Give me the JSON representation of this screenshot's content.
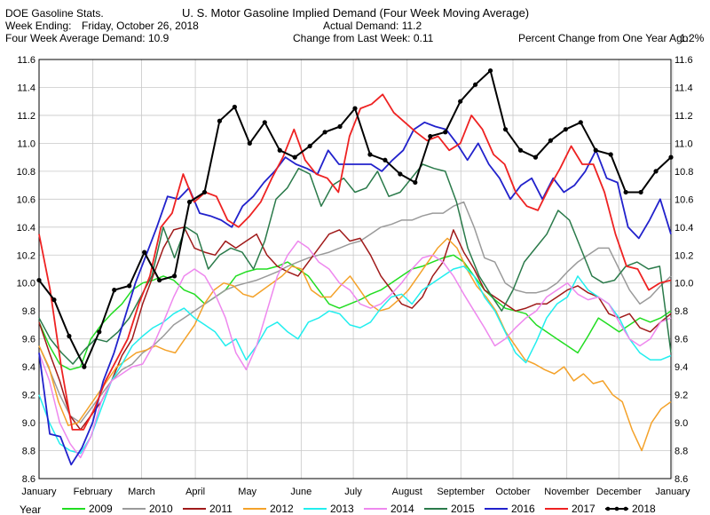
{
  "header": {
    "source": "DOE Gasoline Stats.",
    "title": "U. S. Motor Gasoline Implied Demand (Four Week Moving Average)",
    "week_ending_label": "Week Ending:",
    "week_ending_value": "Friday, October 26, 2018",
    "actual_demand": "Actual Demand: 11.2",
    "four_week_avg": "Four Week Average Demand: 10.9",
    "change_last_week": "Change from Last Week: 0.11",
    "pct_change_year": "Percent Change from One Year Ago:",
    "pct_change_value": "1.2%"
  },
  "legend_label": "Year",
  "chart_data": {
    "type": "line",
    "title": "U. S. Motor Gasoline Implied Demand (Four Week Moving Average)",
    "xlabel": "",
    "ylabel": "",
    "ylim": [
      8.6,
      11.6
    ],
    "yticks": [
      "8.6",
      "8.8",
      "9.0",
      "9.2",
      "9.4",
      "9.6",
      "9.8",
      "10.0",
      "10.2",
      "10.4",
      "10.6",
      "10.8",
      "11.0",
      "11.2",
      "11.4",
      "11.6"
    ],
    "xlim": [
      0,
      52
    ],
    "xtick_labels": [
      "January",
      "February",
      "March",
      "April",
      "May",
      "June",
      "July",
      "August",
      "September",
      "October",
      "November",
      "December",
      "January"
    ],
    "xtick_positions": [
      0,
      4.43,
      8.43,
      12.86,
      17.14,
      21.57,
      25.86,
      30.29,
      34.71,
      39,
      43.43,
      47.71,
      52.14
    ],
    "grid": true,
    "legend_placement": "bottom",
    "series": [
      {
        "name": "2009",
        "color": "#22dd22",
        "width": 1.5,
        "values": [
          9.72,
          9.55,
          9.42,
          9.38,
          9.4,
          9.6,
          9.7,
          9.78,
          9.85,
          9.95,
          10.0,
          10.02,
          10.05,
          10.02,
          9.95,
          9.92,
          9.85,
          9.9,
          9.95,
          10.05,
          10.08,
          10.1,
          10.1,
          10.12,
          10.15,
          10.1,
          10.05,
          9.95,
          9.85,
          9.82,
          9.85,
          9.88,
          9.92,
          9.95,
          10.0,
          10.05,
          10.1,
          10.12,
          10.15,
          10.18,
          10.2,
          10.15,
          10.05,
          9.95,
          9.88,
          9.82,
          9.8,
          9.78,
          9.7,
          9.65,
          9.6,
          9.55,
          9.5,
          9.62,
          9.75,
          9.7,
          9.65,
          9.7,
          9.75,
          9.72,
          9.75,
          9.8
        ]
      },
      {
        "name": "2010",
        "color": "#9a9a9a",
        "width": 1.5,
        "values": [
          9.55,
          9.38,
          9.2,
          9.05,
          9.0,
          9.1,
          9.2,
          9.3,
          9.38,
          9.42,
          9.5,
          9.55,
          9.62,
          9.7,
          9.75,
          9.8,
          9.85,
          9.9,
          9.95,
          9.98,
          10.0,
          10.02,
          10.05,
          10.08,
          10.12,
          10.15,
          10.18,
          10.2,
          10.22,
          10.25,
          10.28,
          10.3,
          10.35,
          10.4,
          10.42,
          10.45,
          10.45,
          10.48,
          10.5,
          10.5,
          10.55,
          10.58,
          10.4,
          10.18,
          10.15,
          10.0,
          9.95,
          9.93,
          9.93,
          9.95,
          10.0,
          10.08,
          10.15,
          10.2,
          10.25,
          10.25,
          10.1,
          9.95,
          9.85,
          9.9,
          9.98,
          10.05
        ]
      },
      {
        "name": "2011",
        "color": "#a01a1a",
        "width": 1.5,
        "values": [
          9.72,
          9.5,
          9.3,
          9.05,
          8.95,
          9.05,
          9.15,
          9.3,
          9.48,
          9.6,
          9.85,
          10.05,
          10.25,
          10.38,
          10.4,
          10.25,
          10.22,
          10.2,
          10.3,
          10.25,
          10.3,
          10.35,
          10.2,
          10.12,
          10.08,
          10.05,
          10.15,
          10.25,
          10.35,
          10.38,
          10.3,
          10.32,
          10.2,
          10.05,
          9.95,
          9.85,
          9.82,
          9.9,
          10.05,
          10.15,
          10.38,
          10.22,
          10.1,
          9.95,
          9.9,
          9.85,
          9.8,
          9.82,
          9.85,
          9.85,
          9.9,
          9.95,
          9.98,
          9.93,
          9.9,
          9.78,
          9.75,
          9.78,
          9.68,
          9.65,
          9.72,
          9.78
        ]
      },
      {
        "name": "2012",
        "color": "#f4a22a",
        "width": 1.5,
        "values": [
          9.55,
          9.4,
          9.15,
          8.98,
          9.0,
          9.1,
          9.2,
          9.3,
          9.4,
          9.45,
          9.5,
          9.52,
          9.55,
          9.52,
          9.5,
          9.6,
          9.7,
          9.85,
          9.95,
          10.0,
          9.98,
          9.92,
          9.9,
          9.95,
          10.0,
          10.05,
          10.12,
          10.1,
          9.95,
          9.9,
          9.9,
          9.98,
          10.05,
          9.95,
          9.85,
          9.8,
          9.82,
          9.88,
          9.95,
          10.05,
          10.15,
          10.25,
          10.32,
          10.25,
          10.1,
          9.98,
          9.9,
          9.8,
          9.65,
          9.55,
          9.45,
          9.42,
          9.38,
          9.35,
          9.4,
          9.3,
          9.35,
          9.28,
          9.3,
          9.2,
          9.15,
          8.95,
          8.8,
          9.0,
          9.1,
          9.15
        ]
      },
      {
        "name": "2013",
        "color": "#22eeee",
        "width": 1.5,
        "values": [
          9.2,
          9.0,
          8.85,
          8.8,
          8.78,
          8.9,
          9.1,
          9.3,
          9.42,
          9.55,
          9.62,
          9.68,
          9.72,
          9.78,
          9.82,
          9.75,
          9.7,
          9.65,
          9.55,
          9.6,
          9.45,
          9.55,
          9.68,
          9.72,
          9.65,
          9.6,
          9.72,
          9.75,
          9.8,
          9.78,
          9.7,
          9.68,
          9.72,
          9.82,
          9.9,
          9.92,
          9.85,
          9.95,
          10.0,
          10.05,
          10.1,
          10.12,
          10.05,
          9.9,
          9.8,
          9.65,
          9.5,
          9.43,
          9.58,
          9.75,
          9.85,
          9.9,
          10.05,
          9.95,
          9.9,
          9.85,
          9.75,
          9.6,
          9.5,
          9.45,
          9.45,
          9.48
        ]
      },
      {
        "name": "2014",
        "color": "#ee88ee",
        "width": 1.5,
        "values": [
          9.5,
          9.3,
          9.0,
          8.85,
          8.75,
          8.9,
          9.15,
          9.3,
          9.35,
          9.4,
          9.42,
          9.55,
          9.72,
          9.9,
          10.05,
          10.1,
          10.05,
          9.92,
          9.75,
          9.5,
          9.38,
          9.55,
          9.8,
          10.05,
          10.2,
          10.3,
          10.25,
          10.15,
          10.1,
          10.0,
          9.95,
          9.85,
          9.82,
          9.85,
          9.92,
          10.0,
          10.1,
          10.18,
          10.2,
          10.15,
          10.05,
          9.92,
          9.8,
          9.68,
          9.55,
          9.6,
          9.68,
          9.75,
          9.8,
          9.9,
          9.95,
          10.0,
          9.92,
          9.88,
          9.9,
          9.85,
          9.72,
          9.6,
          9.55,
          9.6,
          9.72,
          9.75
        ]
      },
      {
        "name": "2015",
        "color": "#2a7a4a",
        "width": 1.5,
        "values": [
          9.75,
          9.6,
          9.5,
          9.42,
          9.52,
          9.6,
          9.58,
          9.65,
          9.75,
          9.9,
          10.05,
          10.4,
          10.18,
          10.4,
          10.35,
          10.1,
          10.2,
          10.25,
          10.22,
          10.1,
          10.3,
          10.6,
          10.68,
          10.82,
          10.78,
          10.55,
          10.7,
          10.75,
          10.65,
          10.68,
          10.8,
          10.62,
          10.65,
          10.75,
          10.85,
          10.82,
          10.8,
          10.58,
          10.25,
          10.05,
          9.92,
          9.8,
          9.95,
          10.15,
          10.25,
          10.35,
          10.52,
          10.45,
          10.25,
          10.05,
          10.0,
          10.02,
          10.12,
          10.15,
          10.1,
          10.12,
          9.5
        ]
      },
      {
        "name": "2016",
        "color": "#2222cc",
        "width": 1.8,
        "values": [
          9.5,
          8.92,
          8.9,
          8.7,
          8.82,
          9.0,
          9.3,
          9.5,
          9.75,
          10.0,
          10.2,
          10.4,
          10.62,
          10.6,
          10.68,
          10.5,
          10.48,
          10.45,
          10.4,
          10.55,
          10.62,
          10.72,
          10.8,
          10.9,
          10.85,
          10.82,
          10.78,
          10.95,
          10.85,
          10.85,
          10.85,
          10.85,
          10.8,
          10.88,
          10.95,
          11.1,
          11.15,
          11.12,
          11.1,
          11.0,
          10.88,
          11.0,
          10.85,
          10.75,
          10.6,
          10.7,
          10.75,
          10.6,
          10.75,
          10.65,
          10.7,
          10.8,
          10.95,
          10.75,
          10.72,
          10.4,
          10.32,
          10.45,
          10.6,
          10.35
        ]
      },
      {
        "name": "2017",
        "color": "#ee2222",
        "width": 1.8,
        "values": [
          10.35,
          9.95,
          9.4,
          8.95,
          8.95,
          9.1,
          9.3,
          9.45,
          9.6,
          9.85,
          10.05,
          10.4,
          10.5,
          10.78,
          10.58,
          10.65,
          10.62,
          10.45,
          10.4,
          10.48,
          10.58,
          10.75,
          10.9,
          11.1,
          10.88,
          10.78,
          10.75,
          10.65,
          11.05,
          11.25,
          11.28,
          11.35,
          11.22,
          11.15,
          11.08,
          11.02,
          11.05,
          10.95,
          11.0,
          11.2,
          11.1,
          10.92,
          10.85,
          10.65,
          10.55,
          10.52,
          10.68,
          10.82,
          10.98,
          10.85,
          10.85,
          10.65,
          10.35,
          10.12,
          10.1,
          9.95,
          10.0,
          10.02
        ]
      },
      {
        "name": "2018",
        "color": "#000000",
        "width": 2,
        "markers": true,
        "values": [
          10.02,
          9.88,
          9.62,
          9.4,
          9.65,
          9.95,
          9.98,
          10.22,
          10.02,
          10.05,
          10.58,
          10.65,
          11.16,
          11.26,
          11.0,
          11.15,
          10.95,
          10.9,
          10.98,
          11.08,
          11.12,
          11.25,
          10.92,
          10.88,
          10.78,
          10.72,
          11.05,
          11.08,
          11.3,
          11.42,
          11.52,
          11.1,
          10.95,
          10.9,
          11.02,
          11.1,
          11.15,
          10.95,
          10.92,
          10.65,
          10.65,
          10.8,
          10.9
        ]
      }
    ]
  }
}
